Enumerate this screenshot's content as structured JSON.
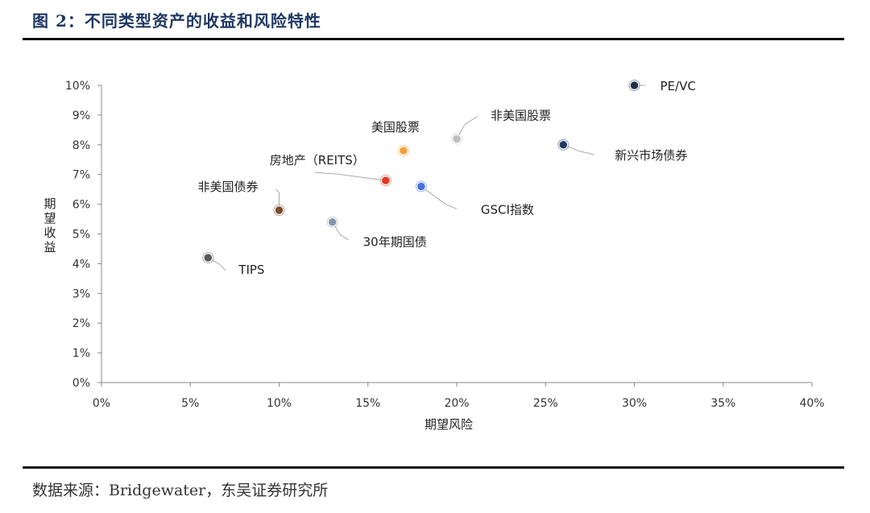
{
  "header": {
    "title": "图 2：不同类型资产的收益和风险特性"
  },
  "footer": {
    "source": "数据来源：Bridgewater，东吴证券研究所"
  },
  "chart_data": {
    "type": "scatter",
    "xlabel": "期望风险",
    "ylabel": "期望收益",
    "xlim": [
      0,
      40
    ],
    "ylim": [
      0,
      10
    ],
    "x_ticks": [
      0,
      5,
      10,
      15,
      20,
      25,
      30,
      35,
      40
    ],
    "y_ticks": [
      0,
      1,
      2,
      3,
      4,
      5,
      6,
      7,
      8,
      9,
      10
    ],
    "tick_format": "percent",
    "grid": false,
    "points": [
      {
        "name": "TIPS",
        "x": 6,
        "y": 4.2,
        "color": "#595959",
        "label_pos": "lower-right"
      },
      {
        "name": "非美国债券",
        "x": 10,
        "y": 5.8,
        "color": "#7a4a2a",
        "label_pos": "upper-left"
      },
      {
        "name": "30年期国债",
        "x": 13,
        "y": 5.4,
        "color": "#8497b0",
        "label_pos": "lower-right"
      },
      {
        "name": "房地产（REITS）",
        "x": 16,
        "y": 6.8,
        "color": "#e03c1f",
        "label_pos": "upper-left"
      },
      {
        "name": "美国股票",
        "x": 17,
        "y": 7.8,
        "color": "#f4a13b",
        "label_pos": "upper"
      },
      {
        "name": "GSCI指数",
        "x": 18,
        "y": 6.6,
        "color": "#4472e4",
        "label_pos": "lower-right"
      },
      {
        "name": "非美国股票",
        "x": 20,
        "y": 8.2,
        "color": "#bfbfbf",
        "label_pos": "upper-right"
      },
      {
        "name": "新兴市场债券",
        "x": 26,
        "y": 8.0,
        "color": "#203864",
        "label_pos": "lower-right"
      },
      {
        "name": "PE/VC",
        "x": 30,
        "y": 10.0,
        "color": "#1f2f4a",
        "label_pos": "right"
      }
    ]
  }
}
